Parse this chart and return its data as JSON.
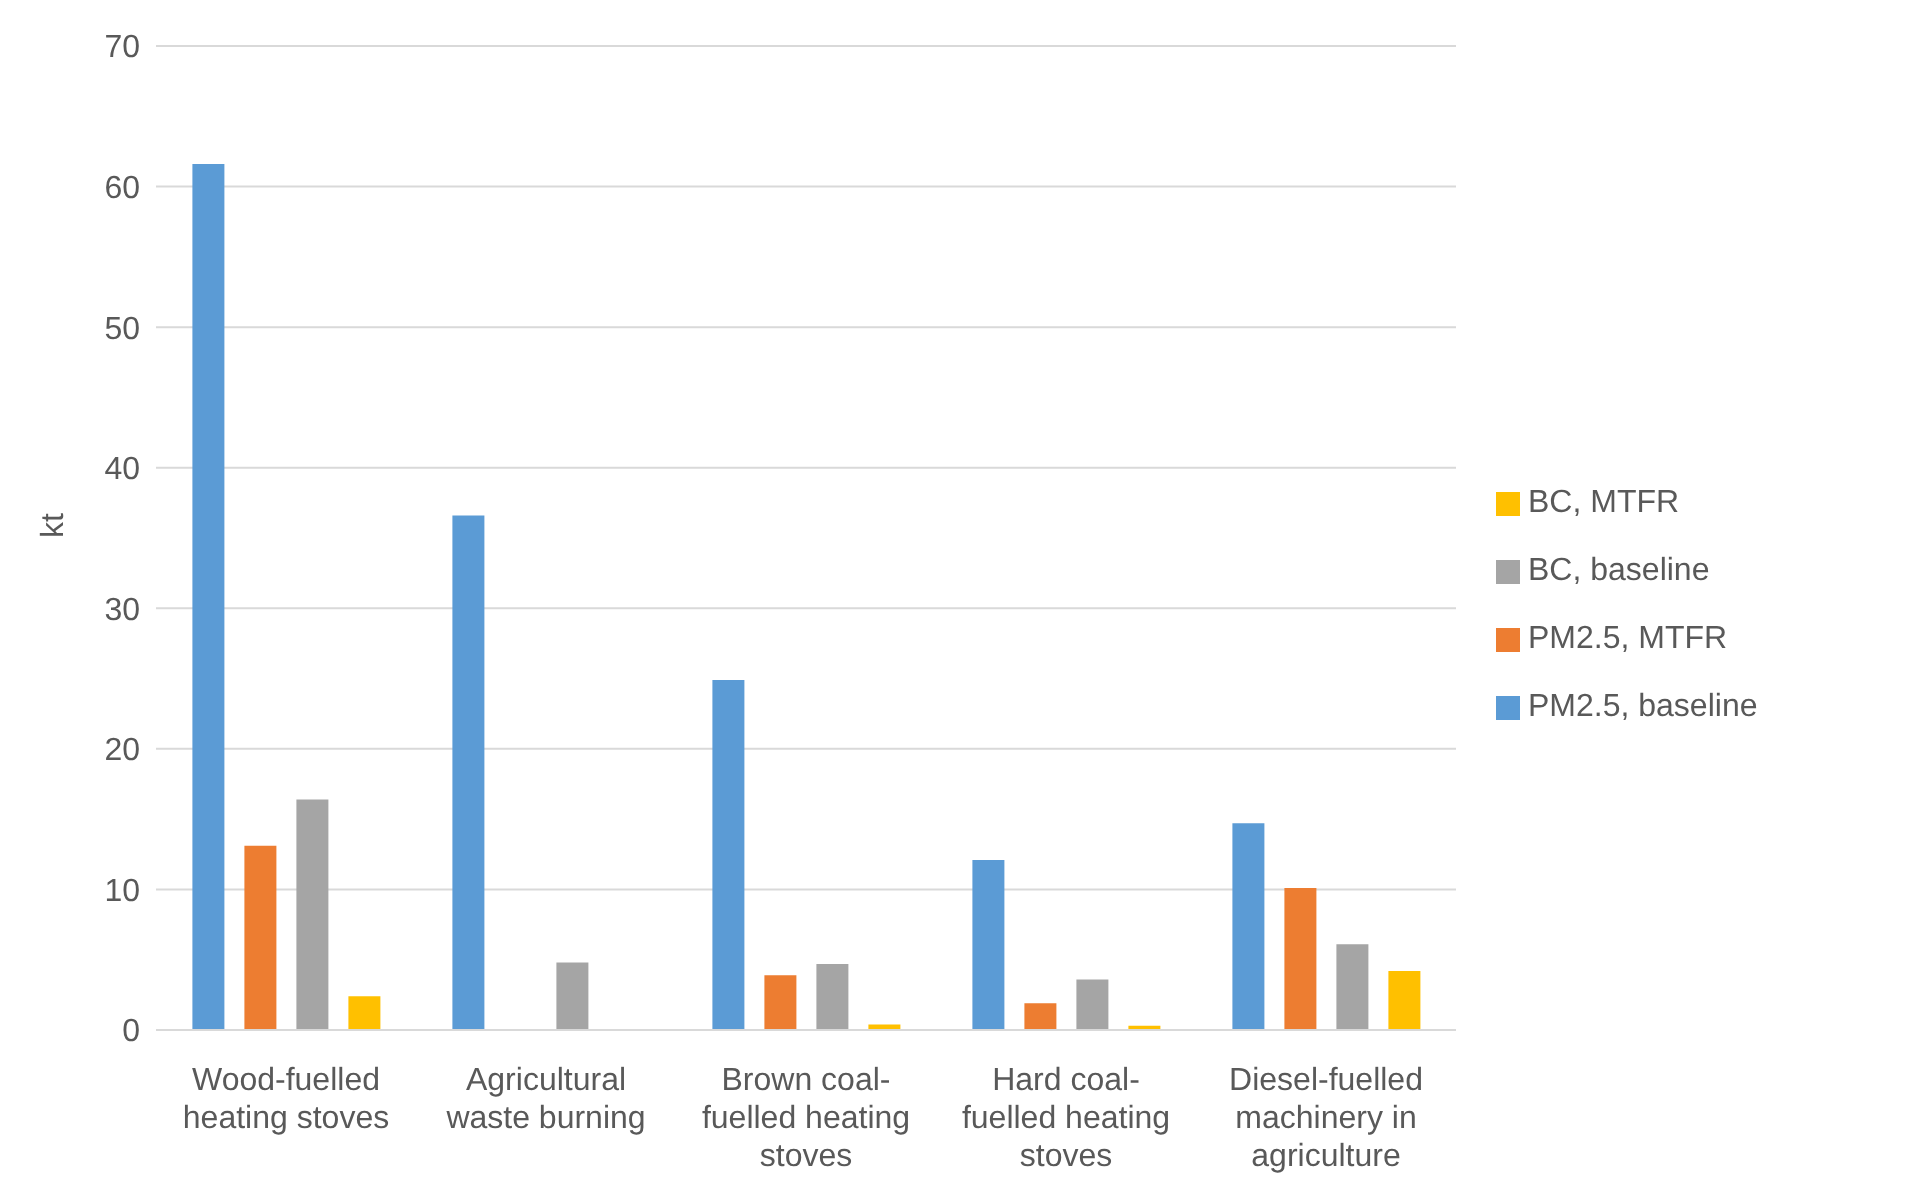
{
  "chart_data": {
    "type": "bar",
    "ylabel": "kt",
    "categories": [
      "Wood-fuelled heating stoves",
      "Agricultural waste burning",
      "Brown coal-fuelled heating stoves",
      "Hard coal-fuelled heating stoves",
      "Diesel-fuelled machinery in agriculture"
    ],
    "series": [
      {
        "name": "PM2.5, baseline",
        "color": "#5b9bd5",
        "values": [
          61.6,
          36.6,
          24.9,
          12.1,
          14.7
        ]
      },
      {
        "name": "PM2.5, MTFR",
        "color": "#ed7d31",
        "values": [
          13.1,
          0,
          3.9,
          1.9,
          10.1
        ]
      },
      {
        "name": "BC, baseline",
        "color": "#a5a5a5",
        "values": [
          16.4,
          4.8,
          4.7,
          3.6,
          6.1
        ]
      },
      {
        "name": "BC, MTFR",
        "color": "#ffc000",
        "values": [
          2.4,
          0,
          0.4,
          0.3,
          4.2
        ]
      }
    ],
    "ylim": [
      0,
      70
    ],
    "yticks": [
      0,
      10,
      20,
      30,
      40,
      50,
      60,
      70
    ],
    "grid": "y",
    "legend": "right"
  }
}
